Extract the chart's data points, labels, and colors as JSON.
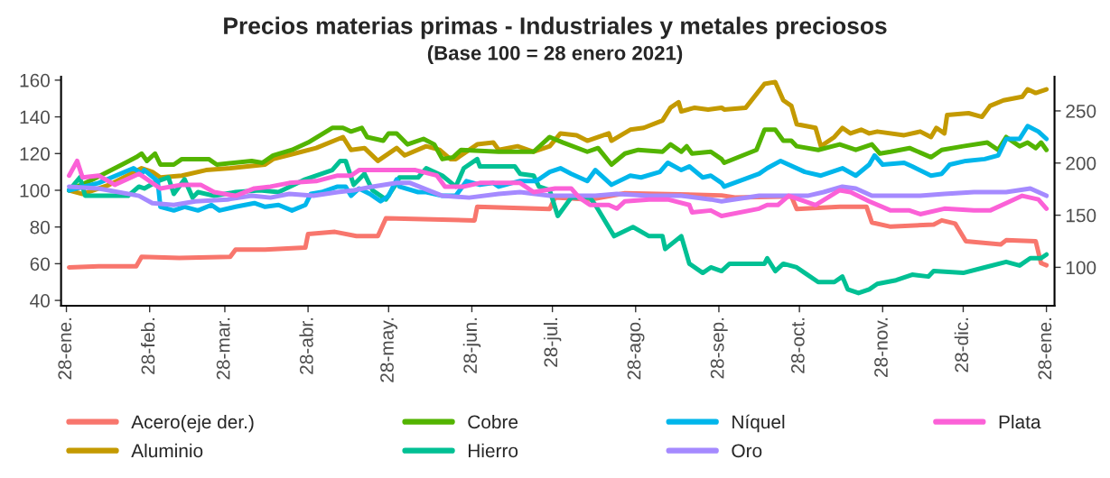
{
  "chart_data": {
    "type": "line",
    "title": "Precios materias primas - Industriales y metales preciosos",
    "subtitle": "(Base 100 = 28 enero 2021)",
    "xlim": [
      "2021-01-26",
      "2022-01-31"
    ],
    "xticks": [
      {
        "value": "2021-01-28",
        "label": "28-ene."
      },
      {
        "value": "2021-02-28",
        "label": "28-feb."
      },
      {
        "value": "2021-03-28",
        "label": "28-mar."
      },
      {
        "value": "2021-04-28",
        "label": "28-abr."
      },
      {
        "value": "2021-05-28",
        "label": "28-may."
      },
      {
        "value": "2021-06-28",
        "label": "28-jun."
      },
      {
        "value": "2021-07-28",
        "label": "28-jul."
      },
      {
        "value": "2021-08-28",
        "label": "28-ago."
      },
      {
        "value": "2021-09-28",
        "label": "28-sep."
      },
      {
        "value": "2021-10-28",
        "label": "28-oct."
      },
      {
        "value": "2021-11-28",
        "label": "28-nov."
      },
      {
        "value": "2021-12-28",
        "label": "28-dic."
      },
      {
        "value": "2022-01-28",
        "label": "28-ene."
      }
    ],
    "ylim": [
      37,
      162
    ],
    "yticks": [
      40,
      60,
      80,
      100,
      120,
      140,
      160
    ],
    "y2lim": [
      63,
      283
    ],
    "y2ticks": [
      100,
      150,
      200,
      250
    ],
    "grid": false,
    "legend": "bottom",
    "line_style": "solid",
    "marker": "none",
    "series": [
      {
        "name": "Acero(eje der.)",
        "color": "#F8766D",
        "axis": "y2",
        "x": [
          "2021-01-29",
          "2021-02-09",
          "2021-02-23",
          "2021-02-25",
          "2021-03-11",
          "2021-03-30",
          "2021-04-01",
          "2021-04-12",
          "2021-04-27",
          "2021-04-28",
          "2021-05-08",
          "2021-05-16",
          "2021-05-24",
          "2021-05-27",
          "2021-06-29",
          "2021-06-30",
          "2021-07-27",
          "2021-07-29",
          "2021-08-11",
          "2021-08-24",
          "2021-09-29",
          "2021-10-04",
          "2021-10-25",
          "2021-10-27",
          "2021-11-12",
          "2021-11-22",
          "2021-11-24",
          "2021-12-01",
          "2021-12-17",
          "2021-12-20",
          "2021-12-25",
          "2021-12-29",
          "2022-01-11",
          "2022-01-13",
          "2022-01-24",
          "2022-01-26",
          "2022-01-28"
        ],
        "values": [
          100,
          101,
          101,
          110,
          109,
          110,
          117,
          117,
          119,
          132,
          134,
          130,
          130,
          147,
          145,
          158,
          156,
          167,
          165,
          171,
          169,
          167,
          168,
          156,
          158,
          158,
          143,
          139,
          141,
          145,
          142,
          125,
          122,
          126,
          125,
          104,
          102
        ]
      },
      {
        "name": "Aluminio",
        "color": "#C49A00",
        "x": [
          "2021-01-29",
          "2021-02-03",
          "2021-02-13",
          "2021-02-25",
          "2021-03-01",
          "2021-03-04",
          "2021-03-12",
          "2021-03-21",
          "2021-03-30",
          "2021-04-12",
          "2021-04-15",
          "2021-04-23",
          "2021-05-01",
          "2021-05-11",
          "2021-05-14",
          "2021-05-19",
          "2021-05-24",
          "2021-05-31",
          "2021-06-03",
          "2021-06-11",
          "2021-06-16",
          "2021-06-20",
          "2021-06-22",
          "2021-06-30",
          "2021-07-06",
          "2021-07-08",
          "2021-07-15",
          "2021-07-21",
          "2021-07-27",
          "2021-07-31",
          "2021-08-06",
          "2021-08-10",
          "2021-08-18",
          "2021-08-19",
          "2021-08-26",
          "2021-08-31",
          "2021-09-07",
          "2021-09-10",
          "2021-09-13",
          "2021-09-14",
          "2021-09-19",
          "2021-09-24",
          "2021-09-29",
          "2021-09-30",
          "2021-10-08",
          "2021-10-15",
          "2021-10-19",
          "2021-10-22",
          "2021-10-25",
          "2021-10-27",
          "2021-11-03",
          "2021-11-05",
          "2021-11-10",
          "2021-11-13",
          "2021-11-16",
          "2021-11-20",
          "2021-11-23",
          "2021-11-26",
          "2021-12-06",
          "2021-12-12",
          "2021-12-16",
          "2021-12-18",
          "2021-12-21",
          "2021-12-22",
          "2021-12-30",
          "2022-01-04",
          "2022-01-07",
          "2022-01-12",
          "2022-01-19",
          "2022-01-21",
          "2022-01-24",
          "2022-01-28"
        ],
        "values": [
          100,
          98,
          103,
          112,
          110,
          107,
          108,
          111,
          112,
          114,
          117,
          120,
          123,
          129,
          122,
          123,
          116,
          123,
          119,
          124,
          122,
          117,
          117,
          125,
          126,
          122,
          124,
          121,
          124,
          131,
          130,
          127,
          131,
          127,
          133,
          134,
          138,
          145,
          148,
          143,
          145,
          144,
          145,
          144,
          145,
          158,
          159,
          149,
          146,
          136,
          134,
          124,
          129,
          134,
          131,
          133,
          131,
          132,
          130,
          132,
          129,
          134,
          131,
          141,
          142,
          140,
          146,
          149,
          151,
          155,
          153,
          155
        ]
      },
      {
        "name": "Cobre",
        "color": "#53B400",
        "x": [
          "2021-01-29",
          "2021-02-07",
          "2021-02-19",
          "2021-02-23",
          "2021-02-25",
          "2021-02-27",
          "2021-03-02",
          "2021-03-04",
          "2021-03-09",
          "2021-03-12",
          "2021-03-22",
          "2021-03-25",
          "2021-04-07",
          "2021-04-11",
          "2021-04-15",
          "2021-04-22",
          "2021-04-28",
          "2021-05-07",
          "2021-05-11",
          "2021-05-14",
          "2021-05-18",
          "2021-05-20",
          "2021-05-26",
          "2021-05-28",
          "2021-05-31",
          "2021-06-04",
          "2021-06-10",
          "2021-06-14",
          "2021-06-17",
          "2021-06-21",
          "2021-06-24",
          "2021-07-08",
          "2021-07-21",
          "2021-07-27",
          "2021-08-01",
          "2021-08-10",
          "2021-08-14",
          "2021-08-19",
          "2021-08-24",
          "2021-08-29",
          "2021-09-07",
          "2021-09-10",
          "2021-09-14",
          "2021-09-16",
          "2021-09-18",
          "2021-09-25",
          "2021-09-29",
          "2021-09-30",
          "2021-10-12",
          "2021-10-15",
          "2021-10-19",
          "2021-10-22",
          "2021-10-25",
          "2021-10-27",
          "2021-11-04",
          "2021-11-12",
          "2021-11-18",
          "2021-11-24",
          "2021-11-27",
          "2021-12-01",
          "2021-12-08",
          "2021-12-16",
          "2021-12-20",
          "2021-12-28",
          "2022-01-06",
          "2022-01-10",
          "2022-01-13",
          "2022-01-18",
          "2022-01-21",
          "2022-01-24",
          "2022-01-26",
          "2022-01-28"
        ],
        "values": [
          100,
          106,
          115,
          118,
          120,
          116,
          120,
          114,
          114,
          117,
          117,
          114,
          116,
          115,
          119,
          122,
          126,
          134,
          134,
          132,
          134,
          129,
          127,
          131,
          131,
          125,
          128,
          125,
          117,
          118,
          122,
          121,
          121,
          129,
          126,
          121,
          123,
          114,
          120,
          122,
          121,
          125,
          121,
          124,
          120,
          121,
          117,
          115,
          122,
          133,
          133,
          127,
          127,
          124,
          122,
          125,
          122,
          125,
          120,
          121,
          123,
          118,
          122,
          124,
          126,
          122,
          129,
          124,
          126,
          123,
          126,
          122
        ]
      },
      {
        "name": "Hierro",
        "color": "#00C094",
        "x": [
          "2021-01-29",
          "2021-02-02",
          "2021-02-04",
          "2021-02-20",
          "2021-02-24",
          "2021-02-26",
          "2021-03-03",
          "2021-03-07",
          "2021-03-09",
          "2021-03-13",
          "2021-03-16",
          "2021-03-18",
          "2021-03-24",
          "2021-04-01",
          "2021-04-10",
          "2021-04-17",
          "2021-04-27",
          "2021-05-07",
          "2021-05-10",
          "2021-05-12",
          "2021-05-15",
          "2021-05-19",
          "2021-05-22",
          "2021-05-27",
          "2021-05-31",
          "2021-06-01",
          "2021-06-08",
          "2021-06-11",
          "2021-06-17",
          "2021-06-22",
          "2021-06-25",
          "2021-06-30",
          "2021-07-01",
          "2021-07-14",
          "2021-07-16",
          "2021-07-21",
          "2021-07-23",
          "2021-07-27",
          "2021-07-30",
          "2021-08-04",
          "2021-08-11",
          "2021-08-13",
          "2021-08-20",
          "2021-08-27",
          "2021-09-02",
          "2021-09-07",
          "2021-09-08",
          "2021-09-14",
          "2021-09-17",
          "2021-09-22",
          "2021-09-25",
          "2021-09-29",
          "2021-10-02",
          "2021-10-15",
          "2021-10-16",
          "2021-10-19",
          "2021-10-22",
          "2021-10-27",
          "2021-10-30",
          "2021-11-04",
          "2021-11-10",
          "2021-11-13",
          "2021-11-15",
          "2021-11-19",
          "2021-11-23",
          "2021-11-26",
          "2021-12-03",
          "2021-12-09",
          "2021-12-15",
          "2021-12-17",
          "2021-12-28",
          "2022-01-05",
          "2022-01-13",
          "2022-01-18",
          "2022-01-22",
          "2022-01-26",
          "2022-01-28"
        ],
        "values": [
          100,
          107,
          97,
          97,
          102,
          101,
          105,
          107,
          98,
          106,
          96,
          99,
          97,
          99,
          100,
          99,
          106,
          111,
          116,
          116,
          103,
          109,
          100,
          95,
          104,
          107,
          107,
          112,
          108,
          102,
          112,
          117,
          113,
          113,
          109,
          108,
          102,
          100,
          86,
          96,
          96,
          92,
          75,
          80,
          75,
          75,
          68,
          75,
          60,
          55,
          58,
          56,
          60,
          60,
          63,
          56,
          60,
          58,
          55,
          50,
          50,
          53,
          46,
          44,
          46,
          49,
          51,
          54,
          53,
          56,
          55,
          58,
          61,
          59,
          63,
          63,
          65
        ]
      },
      {
        "name": "Níquel",
        "color": "#00B6EB",
        "x": [
          "2021-01-29",
          "2021-02-09",
          "2021-02-22",
          "2021-02-25",
          "2021-02-26",
          "2021-03-03",
          "2021-03-04",
          "2021-03-09",
          "2021-03-13",
          "2021-03-18",
          "2021-03-23",
          "2021-03-26",
          "2021-04-01",
          "2021-04-08",
          "2021-04-12",
          "2021-04-17",
          "2021-04-22",
          "2021-04-27",
          "2021-04-29",
          "2021-05-03",
          "2021-05-09",
          "2021-05-12",
          "2021-05-14",
          "2021-05-17",
          "2021-05-21",
          "2021-05-25",
          "2021-05-28",
          "2021-05-31",
          "2021-06-01",
          "2021-06-08",
          "2021-06-11",
          "2021-06-17",
          "2021-06-22",
          "2021-06-26",
          "2021-07-01",
          "2021-07-06",
          "2021-07-08",
          "2021-07-13",
          "2021-07-16",
          "2021-07-22",
          "2021-07-27",
          "2021-07-31",
          "2021-08-04",
          "2021-08-10",
          "2021-08-13",
          "2021-08-19",
          "2021-08-26",
          "2021-08-30",
          "2021-09-06",
          "2021-09-09",
          "2021-09-14",
          "2021-09-17",
          "2021-09-22",
          "2021-09-25",
          "2021-09-29",
          "2021-09-30",
          "2021-10-13",
          "2021-10-16",
          "2021-10-21",
          "2021-10-30",
          "2021-11-05",
          "2021-11-13",
          "2021-11-18",
          "2021-11-23",
          "2021-11-25",
          "2021-11-28",
          "2021-12-06",
          "2021-12-09",
          "2021-12-16",
          "2021-12-20",
          "2021-12-23",
          "2021-12-29",
          "2022-01-05",
          "2022-01-10",
          "2022-01-13",
          "2022-01-18",
          "2022-01-21",
          "2022-01-25",
          "2022-01-28"
        ],
        "values": [
          100,
          104,
          112,
          109,
          111,
          105,
          91,
          89,
          91,
          89,
          92,
          89,
          91,
          93,
          91,
          92,
          89,
          92,
          98,
          99,
          102,
          102,
          97,
          101,
          98,
          94,
          97,
          106,
          102,
          99,
          99,
          97,
          97,
          105,
          103,
          104,
          102,
          104,
          105,
          105,
          110,
          112,
          109,
          105,
          111,
          103,
          108,
          107,
          110,
          115,
          111,
          113,
          107,
          108,
          104,
          102,
          109,
          112,
          116,
          110,
          108,
          112,
          108,
          114,
          119,
          114,
          115,
          113,
          108,
          109,
          114,
          116,
          117,
          119,
          128,
          128,
          135,
          132,
          128
        ]
      },
      {
        "name": "Oro",
        "color": "#A58AFF",
        "x": [
          "2021-01-29",
          "2021-02-09",
          "2021-02-24",
          "2021-03-01",
          "2021-03-09",
          "2021-03-17",
          "2021-03-29",
          "2021-04-07",
          "2021-04-14",
          "2021-04-21",
          "2021-04-30",
          "2021-05-09",
          "2021-05-15",
          "2021-05-22",
          "2021-05-31",
          "2021-06-05",
          "2021-06-17",
          "2021-06-27",
          "2021-07-08",
          "2021-07-16",
          "2021-07-27",
          "2021-08-13",
          "2021-08-21",
          "2021-09-02",
          "2021-09-14",
          "2021-09-25",
          "2021-09-29",
          "2021-10-13",
          "2021-10-23",
          "2021-10-31",
          "2021-11-06",
          "2021-11-13",
          "2021-11-18",
          "2021-11-24",
          "2021-12-01",
          "2021-12-12",
          "2021-12-21",
          "2022-01-01",
          "2022-01-13",
          "2022-01-22",
          "2022-01-28"
        ],
        "values": [
          102,
          101,
          97,
          93,
          92,
          94,
          95,
          97,
          96,
          98,
          97,
          99,
          100,
          102,
          104,
          104,
          97,
          96,
          98,
          99,
          97,
          97,
          98,
          97,
          97,
          95,
          94,
          97,
          97,
          97,
          99,
          102,
          101,
          97,
          97,
          97,
          98,
          99,
          99,
          101,
          97
        ]
      },
      {
        "name": "Plata",
        "color": "#FB61D7",
        "x": [
          "2021-01-29",
          "2021-02-01",
          "2021-02-03",
          "2021-02-09",
          "2021-02-15",
          "2021-02-24",
          "2021-03-04",
          "2021-03-12",
          "2021-03-19",
          "2021-03-24",
          "2021-04-01",
          "2021-04-08",
          "2021-04-14",
          "2021-04-21",
          "2021-05-01",
          "2021-05-09",
          "2021-05-14",
          "2021-05-17",
          "2021-05-31",
          "2021-06-07",
          "2021-06-15",
          "2021-06-18",
          "2021-06-25",
          "2021-07-01",
          "2021-07-16",
          "2021-07-21",
          "2021-07-29",
          "2021-08-04",
          "2021-08-07",
          "2021-08-11",
          "2021-08-18",
          "2021-08-21",
          "2021-08-24",
          "2021-09-02",
          "2021-09-09",
          "2021-09-17",
          "2021-09-18",
          "2021-09-25",
          "2021-09-29",
          "2021-10-13",
          "2021-10-16",
          "2021-10-20",
          "2021-10-24",
          "2021-10-26",
          "2021-11-03",
          "2021-11-12",
          "2021-11-16",
          "2021-11-23",
          "2021-12-01",
          "2021-12-08",
          "2021-12-12",
          "2021-12-21",
          "2022-01-01",
          "2022-01-07",
          "2022-01-13",
          "2022-01-19",
          "2022-01-25",
          "2022-01-28"
        ],
        "values": [
          108,
          116,
          107,
          108,
          103,
          109,
          101,
          103,
          103,
          99,
          97,
          101,
          102,
          104,
          105,
          108,
          108,
          111,
          111,
          111,
          108,
          102,
          102,
          104,
          104,
          99,
          101,
          101,
          96,
          92,
          92,
          90,
          94,
          95,
          95,
          92,
          88,
          89,
          86,
          90,
          92,
          92,
          97,
          96,
          92,
          100,
          99,
          94,
          89,
          89,
          87,
          90,
          89,
          89,
          93,
          97,
          95,
          90
        ]
      }
    ]
  }
}
